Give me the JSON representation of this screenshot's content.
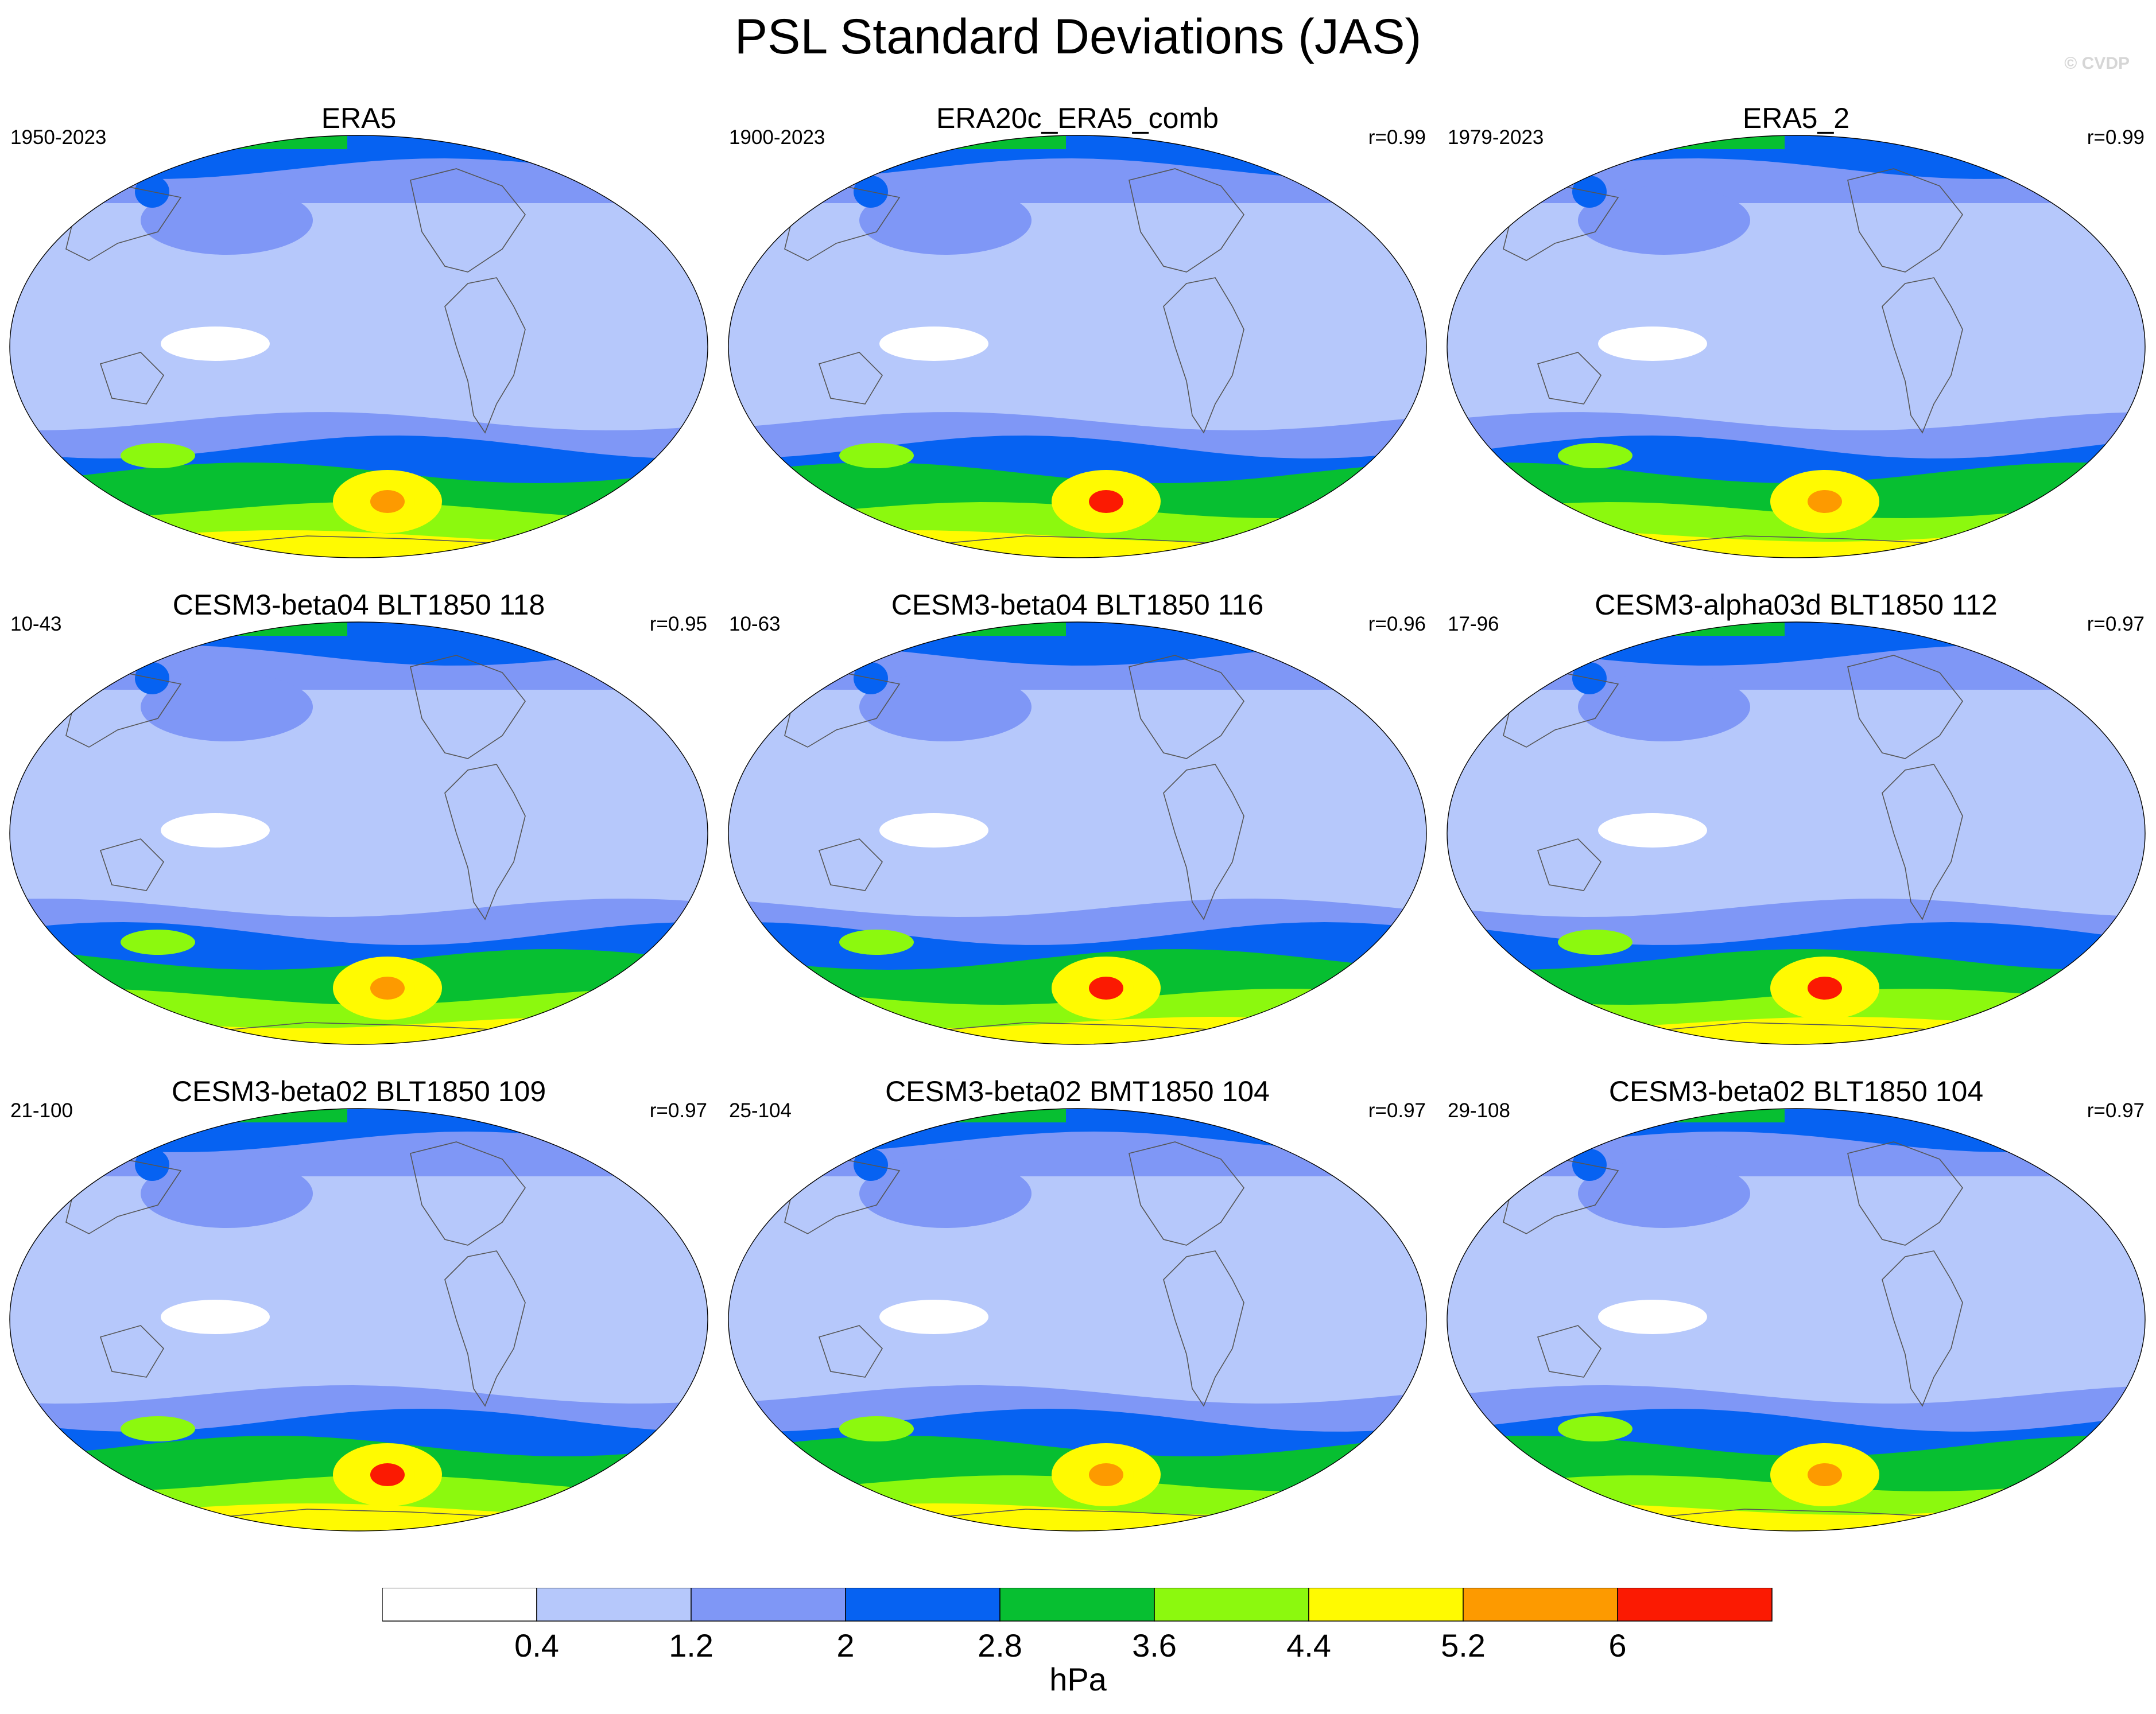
{
  "title": "PSL Standard Deviations (JAS)",
  "watermark": "© CVDP",
  "chart_data": {
    "type": "contour-map-grid",
    "variable": "PSL",
    "season": "JAS",
    "units": "hPa",
    "levels": [
      0.4,
      1.2,
      2,
      2.8,
      3.6,
      4.4,
      5.2,
      6
    ],
    "level_labels": [
      "0.4",
      "1.2",
      "2",
      "2.8",
      "3.6",
      "4.4",
      "5.2",
      "6"
    ],
    "colors": [
      "#ffffff",
      "#b6c8fb",
      "#7f97f6",
      "#0662f2",
      "#07bf31",
      "#8cf90e",
      "#fffa01",
      "#fd9a00",
      "#fb1a02"
    ],
    "panels": [
      {
        "name": "ERA5",
        "years": "1950-2023",
        "r": "",
        "south_peak": 5.6
      },
      {
        "name": "ERA20c_ERA5_comb",
        "years": "1900-2023",
        "r": "r=0.99",
        "south_peak": 6.4
      },
      {
        "name": "ERA5_2",
        "years": "1979-2023",
        "r": "r=0.99",
        "south_peak": 5.6
      },
      {
        "name": "CESM3-beta04 BLT1850 118",
        "years": "10-43",
        "r": "r=0.95",
        "south_peak": 5.6
      },
      {
        "name": "CESM3-beta04 BLT1850 116",
        "years": "10-63",
        "r": "r=0.96",
        "south_peak": 6.4
      },
      {
        "name": "CESM3-alpha03d BLT1850 112",
        "years": "17-96",
        "r": "r=0.97",
        "south_peak": 6.2
      },
      {
        "name": "CESM3-beta02 BLT1850 109",
        "years": "21-100",
        "r": "r=0.97",
        "south_peak": 6.2
      },
      {
        "name": "CESM3-beta02 BMT1850 104",
        "years": "25-104",
        "r": "r=0.97",
        "south_peak": 5.6
      },
      {
        "name": "CESM3-beta02 BLT1850 104",
        "years": "29-108",
        "r": "r=0.97",
        "south_peak": 5.6
      }
    ]
  }
}
